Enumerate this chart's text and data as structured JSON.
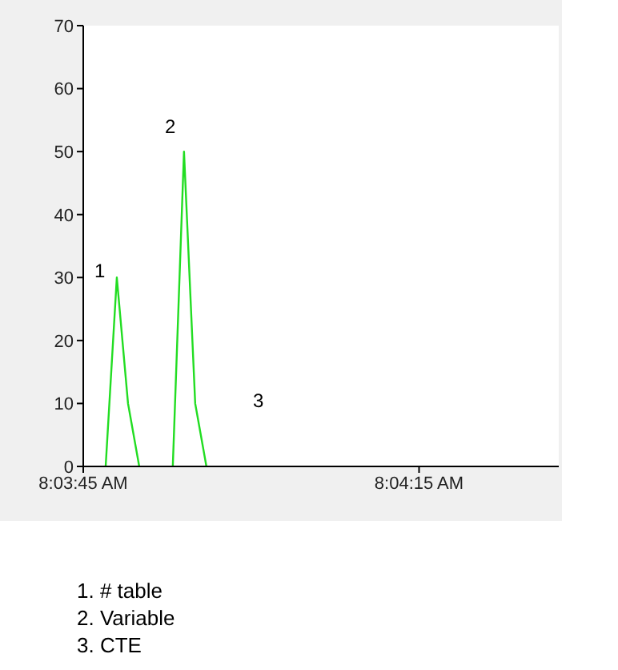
{
  "chart_data": {
    "type": "line",
    "x": [
      8.063056,
      8.063333,
      8.063611,
      8.063889,
      8.0643,
      8.064722,
      8.065,
      8.065278,
      8.065556
    ],
    "series": [
      {
        "color": "#22dd22",
        "values": [
          0,
          30,
          10,
          0,
          null,
          0,
          50,
          10,
          0
        ]
      }
    ],
    "xlim": [
      8.0625,
      8.0743
    ],
    "xticks": [
      {
        "value": 8.0625,
        "label": "8:03:45 AM"
      },
      {
        "value": 8.070833,
        "label": "8:04:15 AM"
      }
    ],
    "ylim": [
      0,
      70
    ],
    "yticks": [
      0,
      10,
      20,
      30,
      40,
      50,
      60,
      70
    ],
    "marker": "none",
    "annotations": [
      "1",
      "2",
      "3",
      "1. # table",
      "2. Variable",
      "3. CTE"
    ]
  }
}
